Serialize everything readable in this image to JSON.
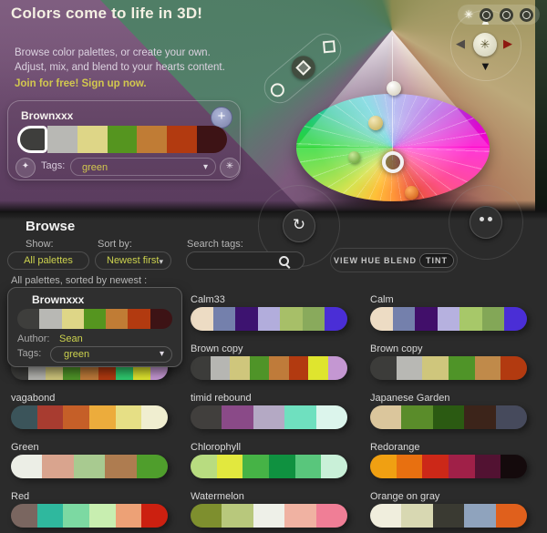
{
  "banner": {
    "title": "Colors come to life in 3D!",
    "tagline_line1": "Browse color palettes, or create your own.",
    "tagline_line2": "Adjust, mix, and blend to your hearts content.",
    "signup": "Join for free! Sign up now.",
    "editor": {
      "name": "Brownxxx",
      "add_label": "+",
      "tags_label": "Tags:",
      "tags_value": "green",
      "colors": [
        "#3e3e3c",
        "#b8b8b4",
        "#ded687",
        "#55951f",
        "#c07c35",
        "#b23a10",
        "#3d1315"
      ]
    },
    "cone": {
      "markers": [
        {
          "name": "white-marker",
          "color": "#f2efe4"
        },
        {
          "name": "tan-marker",
          "color": "#d8c47a"
        },
        {
          "name": "green-marker",
          "color": "#7cc042"
        },
        {
          "name": "orange-marker",
          "color": "#e06a18"
        }
      ],
      "selected_marker": "ring-marker"
    },
    "icons": {
      "sun": "✳",
      "arrow_up": "▲",
      "arrow_down": "▼",
      "arrow_left": "◀",
      "arrow_right": "▶"
    }
  },
  "browse": {
    "heading": "Browse",
    "show_label": "Show:",
    "show_value": "All palettes",
    "sort_label": "Sort by:",
    "sort_value": "Newest first",
    "search_label": "Search tags:",
    "search_value": "",
    "modes": [
      "VIEW",
      "HUE",
      "BLEND",
      "TINT"
    ],
    "active_mode": "TINT",
    "list_header": "All palettes, sorted by newest :",
    "refresh_icon": "↻",
    "caret_icon": "▾",
    "expanded_card": {
      "name": "Brownxxx",
      "author_label": "Author:",
      "author": "Sean",
      "tags_label": "Tags:",
      "tags_value": "green",
      "colors": [
        "#3e3e3c",
        "#b8b8b4",
        "#ded687",
        "#55951f",
        "#c07c35",
        "#b23a10",
        "#3d1315"
      ]
    },
    "palettes": [
      {
        "name": "",
        "colors": []
      },
      {
        "name": "Calm33",
        "colors": [
          "#eddcc4",
          "#7480ac",
          "#3d1370",
          "#b2addc",
          "#a7bf68",
          "#89aa5c",
          "#4a2ed6"
        ]
      },
      {
        "name": "Calm",
        "colors": [
          "#eddcc4",
          "#7480ac",
          "#410f6a",
          "#b6b1df",
          "#a7c869",
          "#83a757",
          "#4a2ed6"
        ]
      },
      {
        "name": "",
        "colors": [
          "#3c3c3a",
          "#b6b6b2",
          "#cfc67c",
          "#4f9428",
          "#bf7b3a",
          "#b23a10",
          "#2fc96e",
          "#dfe52e",
          "#c497d2"
        ]
      },
      {
        "name": "Brown copy",
        "colors": [
          "#3c3c3a",
          "#b6b6b2",
          "#cfc67c",
          "#4f9428",
          "#bf7b3a",
          "#b23a10",
          "#dfe52e",
          "#c497d2"
        ]
      },
      {
        "name": "Brown copy",
        "colors": [
          "#3c3c3a",
          "#b8b8b4",
          "#cfc67c",
          "#4f9428",
          "#c08a4a",
          "#b23a10"
        ]
      },
      {
        "name": "vagabond",
        "colors": [
          "#3b545a",
          "#a83c30",
          "#c55f28",
          "#ecac3c",
          "#e6df85",
          "#f0eed0"
        ]
      },
      {
        "name": "timid rebound",
        "colors": [
          "#413f3d",
          "#8a4a88",
          "#b4a9c4",
          "#6fe0bf",
          "#dcf5ec"
        ]
      },
      {
        "name": "Japanese Garden",
        "colors": [
          "#dbc69c",
          "#5a8c2a",
          "#2b5a12",
          "#3c241a",
          "#464a5c"
        ]
      },
      {
        "name": "Green",
        "colors": [
          "#eceee6",
          "#d9a48e",
          "#a8ca90",
          "#ae7c50",
          "#4f9e2c"
        ]
      },
      {
        "name": "Chlorophyll",
        "colors": [
          "#b8dc80",
          "#e2e83e",
          "#46b346",
          "#0f9140",
          "#59c67c",
          "#c9f0d8"
        ]
      },
      {
        "name": "Redorange",
        "colors": [
          "#f0a012",
          "#e87010",
          "#cc2818",
          "#a02048",
          "#521232",
          "#140a0c"
        ]
      },
      {
        "name": "Red",
        "colors": [
          "#7a6660",
          "#2fb89e",
          "#7cd9a2",
          "#c8eeb0",
          "#eda176",
          "#cc2010"
        ]
      },
      {
        "name": "Watermelon",
        "colors": [
          "#7e8f2e",
          "#b8c87c",
          "#eef0e8",
          "#f0b2a2",
          "#f07e96"
        ]
      },
      {
        "name": "Orange on gray",
        "colors": [
          "#f0eedd",
          "#d8d8b2",
          "#3a3a32",
          "#8fa3bd",
          "#e0601c"
        ]
      }
    ]
  },
  "colors": {
    "accent_yellow_green": "#ccd24e",
    "band_background": "#2b2b2b",
    "banner_purple": "#7b597c",
    "signup_yellow": "#d2c84e"
  }
}
